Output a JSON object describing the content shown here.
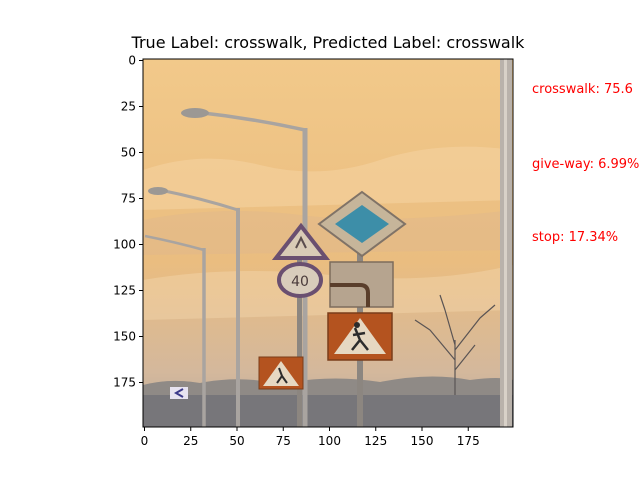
{
  "title": "True Label: crosswalk, Predicted Label: crosswalk",
  "image": {
    "description_icon": "street-signs-photo",
    "sky_colors": [
      "#f1c98c",
      "#e8b97e",
      "#c9a88a"
    ],
    "axes": {
      "x_ticks": [
        "0",
        "25",
        "50",
        "75",
        "100",
        "125",
        "150",
        "175"
      ],
      "y_ticks": [
        "0",
        "25",
        "50",
        "75",
        "100",
        "125",
        "150",
        "175"
      ],
      "x_tick_values": [
        0,
        25,
        50,
        75,
        100,
        125,
        150,
        175
      ],
      "y_tick_values": [
        0,
        25,
        50,
        75,
        100,
        125,
        150,
        175
      ],
      "xlim": [
        0,
        200
      ],
      "ylim": [
        200,
        0
      ]
    },
    "speed_sign_text": "40"
  },
  "predictions": [
    {
      "label": "crosswalk: 75.6",
      "color": "#ff0000"
    },
    {
      "label": "give-way: 6.99%",
      "color": "#ff0000"
    },
    {
      "label": "stop: 17.34%",
      "color": "#ff0000"
    }
  ]
}
